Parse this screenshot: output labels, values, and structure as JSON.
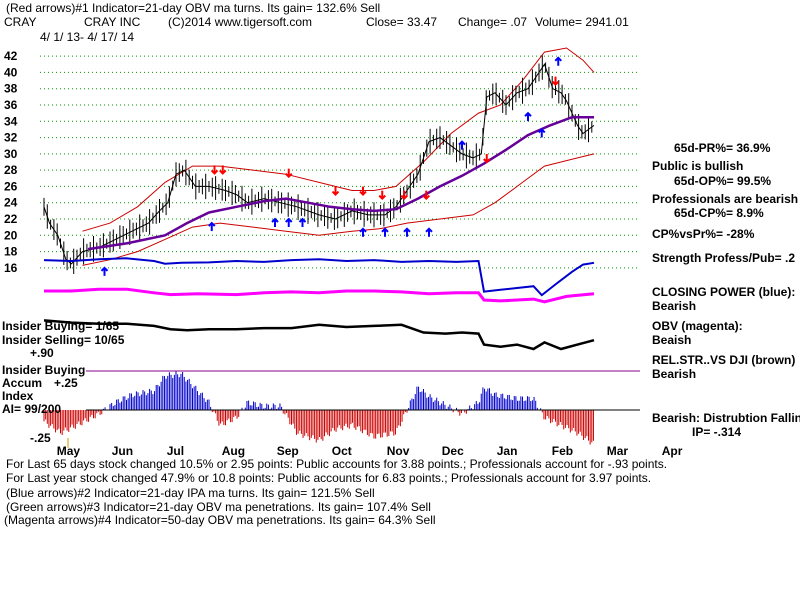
{
  "header": {
    "line1": "(Red arrows)#1 Indicator=21-day OBV ma turns. Its gain= 132.6% Sell",
    "symbol": "CRAY",
    "company": "CRAY INC",
    "copyright": "(C)2014 www.tigersoft.com",
    "close": "Close= 33.47",
    "change": "Change= .07",
    "volume": "Volume= 2941.01",
    "date_range": "4/ 1/ 13- 4/ 17/ 14"
  },
  "right_labels": {
    "pr": "65d-PR%= 36.9%",
    "public": "Public is bullish",
    "op": "65d-OP%= 99.5%",
    "pros": "Professionals are bearish",
    "cp": "65d-CP%= 8.9%",
    "cpvspr": "CP%vsPr%= -28%",
    "strength": "Strength Profess/Pub= .2",
    "closing_power": "CLOSING POWER (blue):",
    "closing_power_state": "Bearish",
    "obv": "OBV (magenta):",
    "obv_state": "Beaish",
    "relstr": "REL.STR..VS DJI (brown)",
    "relstr_state": "Bearish",
    "accum": "Bearish: Distrubtion Falling",
    "ip": "IP= -.314"
  },
  "left_labels": {
    "insider_buying": "Insider Buying= 1/65",
    "insider_selling": "Insider Selling= 10/65",
    "plus90": "+.90",
    "insider_buying2": "Insider Buying",
    "accum": "Accum",
    "plus25": "+.25",
    "index": "Index",
    "ai": "AI= 99/200",
    "minus25": "-.25"
  },
  "footer": {
    "line1": "For Last 65 days stock changed  10.5% or  2.95 points:  Public accounts for  3.88 points.;  Professionals account for  -.93 points.",
    "line2": "For Last year stock changed  47.9% or  10.8 points:  Public accounts for  6.83 points.;  Professionals account for  3.97 points.",
    "line3": "(Blue arrows)#2 Indicator=21-day IPA ma turns. Its gain= 121.5% Sell",
    "line4": "(Green arrows)#3 Indicator=21-day OBV ma penetrations. Its gain= 107.4% Sell",
    "line5": "(Magenta arrows)#4 Indicator=50-day OBV ma penetrations. Its gain= 64.3% Sell"
  },
  "colors": {
    "price": "#000000",
    "bands": "#cc0000",
    "ma": "#660099",
    "closing_power": "#0000cc",
    "obv": "#ff00ff",
    "relstr": "#000000",
    "accum_pos": "#0000cc",
    "accum_neg": "#cc0000",
    "sell_arrow": "#ff0000",
    "buy_arrow": "#0000ff"
  },
  "chart_data": {
    "type": "line",
    "ylim": [
      15,
      43
    ],
    "y_ticks": [
      42,
      40,
      38,
      36,
      34,
      32,
      30,
      28,
      26,
      24,
      22,
      20,
      18,
      16
    ],
    "months": [
      "May",
      "Jun",
      "Jul",
      "Aug",
      "Sep",
      "Oct",
      "Nov",
      "Dec",
      "Jan",
      "Feb",
      "Mar",
      "Apr"
    ],
    "price_path": [
      [
        0,
        23.5
      ],
      [
        0.1,
        21.5
      ],
      [
        0.25,
        20.0
      ],
      [
        0.4,
        17.0
      ],
      [
        0.5,
        16.5
      ],
      [
        0.7,
        18.0
      ],
      [
        1.0,
        18.5
      ],
      [
        1.3,
        19.5
      ],
      [
        1.6,
        20.5
      ],
      [
        1.9,
        21.5
      ],
      [
        2.1,
        23.0
      ],
      [
        2.25,
        24.0
      ],
      [
        2.4,
        27.5
      ],
      [
        2.55,
        28.0
      ],
      [
        2.75,
        26.0
      ],
      [
        3.0,
        26.0
      ],
      [
        3.3,
        25.5
      ],
      [
        3.5,
        25.0
      ],
      [
        3.7,
        24.0
      ],
      [
        4.0,
        24.5
      ],
      [
        4.3,
        24.0
      ],
      [
        4.6,
        23.5
      ],
      [
        5.0,
        22.5
      ],
      [
        5.3,
        22.0
      ],
      [
        5.6,
        23.0
      ],
      [
        5.9,
        22.5
      ],
      [
        6.2,
        22.5
      ],
      [
        6.4,
        23.5
      ],
      [
        6.6,
        25.5
      ],
      [
        6.8,
        27.5
      ],
      [
        7.0,
        31.5
      ],
      [
        7.2,
        32.0
      ],
      [
        7.4,
        31.0
      ],
      [
        7.6,
        30.0
      ],
      [
        7.8,
        29.5
      ],
      [
        7.95,
        30.0
      ],
      [
        8.05,
        37.0
      ],
      [
        8.2,
        37.5
      ],
      [
        8.4,
        36.0
      ],
      [
        8.6,
        37.5
      ],
      [
        8.8,
        38.0
      ],
      [
        8.95,
        39.5
      ],
      [
        9.1,
        41.0
      ],
      [
        9.25,
        38.0
      ],
      [
        9.4,
        37.5
      ],
      [
        9.5,
        36.5
      ],
      [
        9.6,
        35.0
      ],
      [
        9.7,
        33.5
      ],
      [
        9.8,
        32.5
      ],
      [
        9.9,
        33.0
      ],
      [
        10.0,
        33.5
      ]
    ],
    "ma_path": [
      [
        0.8,
        18.3
      ],
      [
        1.5,
        19.0
      ],
      [
        2.2,
        20.0
      ],
      [
        2.6,
        21.5
      ],
      [
        3.0,
        22.8
      ],
      [
        3.5,
        23.5
      ],
      [
        4.0,
        24.2
      ],
      [
        4.4,
        24.5
      ],
      [
        4.8,
        24.0
      ],
      [
        5.2,
        23.5
      ],
      [
        5.6,
        23.2
      ],
      [
        6.0,
        23.0
      ],
      [
        6.4,
        23.2
      ],
      [
        6.8,
        24.5
      ],
      [
        7.2,
        26.0
      ],
      [
        7.6,
        27.3
      ],
      [
        8.0,
        28.8
      ],
      [
        8.4,
        30.5
      ],
      [
        8.8,
        32.3
      ],
      [
        9.2,
        33.5
      ],
      [
        9.6,
        34.5
      ],
      [
        10.0,
        34.5
      ]
    ],
    "upper_band_path": [
      [
        0.7,
        20.5
      ],
      [
        1.2,
        21.5
      ],
      [
        1.7,
        23.5
      ],
      [
        2.2,
        26.5
      ],
      [
        2.7,
        28.5
      ],
      [
        3.2,
        28.5
      ],
      [
        3.8,
        28.0
      ],
      [
        4.4,
        27.5
      ],
      [
        5.0,
        26.5
      ],
      [
        5.6,
        25.5
      ],
      [
        6.0,
        25.5
      ],
      [
        6.4,
        26.0
      ],
      [
        6.9,
        29.0
      ],
      [
        7.4,
        32.5
      ],
      [
        7.9,
        35.0
      ],
      [
        8.3,
        36.0
      ],
      [
        8.7,
        39.0
      ],
      [
        9.1,
        42.5
      ],
      [
        9.5,
        43.0
      ],
      [
        9.8,
        41.5
      ],
      [
        10.0,
        40.0
      ]
    ],
    "lower_band_path": [
      [
        0.7,
        16.3
      ],
      [
        1.2,
        17.0
      ],
      [
        1.7,
        18.0
      ],
      [
        2.2,
        19.5
      ],
      [
        2.7,
        21.0
      ],
      [
        3.2,
        21.5
      ],
      [
        3.8,
        21.0
      ],
      [
        4.4,
        20.5
      ],
      [
        5.0,
        20.0
      ],
      [
        5.6,
        20.5
      ],
      [
        6.1,
        20.8
      ],
      [
        6.6,
        21.5
      ],
      [
        7.2,
        22.0
      ],
      [
        7.8,
        22.5
      ],
      [
        8.2,
        24.0
      ],
      [
        8.7,
        26.5
      ],
      [
        9.1,
        28.5
      ],
      [
        9.4,
        29.0
      ],
      [
        9.7,
        29.5
      ],
      [
        10.0,
        30.0
      ]
    ],
    "closing_power_path": [
      [
        0,
        0.55
      ],
      [
        0.5,
        0.5
      ],
      [
        1.0,
        0.6
      ],
      [
        1.5,
        0.65
      ],
      [
        2.0,
        0.5
      ],
      [
        2.2,
        0.35
      ],
      [
        2.5,
        0.4
      ],
      [
        3.0,
        0.42
      ],
      [
        3.5,
        0.5
      ],
      [
        4.0,
        0.45
      ],
      [
        4.5,
        0.55
      ],
      [
        5.0,
        0.6
      ],
      [
        5.5,
        0.5
      ],
      [
        6.0,
        0.55
      ],
      [
        6.5,
        0.45
      ],
      [
        7.0,
        0.5
      ],
      [
        7.5,
        0.45
      ],
      [
        7.9,
        0.5
      ],
      [
        8.0,
        -1.2
      ],
      [
        8.3,
        -1.1
      ],
      [
        8.6,
        -1.0
      ],
      [
        8.9,
        -0.9
      ],
      [
        9.05,
        -1.4
      ],
      [
        9.3,
        -0.8
      ],
      [
        9.6,
        -0.1
      ],
      [
        9.8,
        0.3
      ],
      [
        10.0,
        0.4
      ]
    ],
    "obv_path": [
      [
        0,
        0.5
      ],
      [
        0.5,
        0.5
      ],
      [
        1.0,
        0.6
      ],
      [
        1.5,
        0.6
      ],
      [
        2.0,
        0.4
      ],
      [
        2.3,
        0.3
      ],
      [
        2.8,
        0.35
      ],
      [
        3.5,
        0.3
      ],
      [
        4.0,
        0.4
      ],
      [
        4.5,
        0.45
      ],
      [
        5.0,
        0.4
      ],
      [
        5.5,
        0.5
      ],
      [
        6.0,
        0.5
      ],
      [
        6.5,
        0.45
      ],
      [
        7.0,
        0.35
      ],
      [
        7.5,
        0.4
      ],
      [
        7.9,
        0.4
      ],
      [
        8.0,
        0.0
      ],
      [
        8.3,
        -0.05
      ],
      [
        8.6,
        0.0
      ],
      [
        8.9,
        0.05
      ],
      [
        9.1,
        -0.1
      ],
      [
        9.5,
        0.2
      ],
      [
        10.0,
        0.35
      ]
    ],
    "relstr_path": [
      [
        0,
        0.8
      ],
      [
        0.5,
        0.7
      ],
      [
        1.0,
        0.65
      ],
      [
        1.5,
        0.65
      ],
      [
        2.0,
        0.55
      ],
      [
        2.3,
        0.4
      ],
      [
        2.6,
        0.35
      ],
      [
        3.0,
        0.4
      ],
      [
        3.5,
        0.4
      ],
      [
        4.0,
        0.45
      ],
      [
        4.5,
        0.45
      ],
      [
        5.0,
        0.6
      ],
      [
        5.5,
        0.5
      ],
      [
        6.0,
        0.55
      ],
      [
        6.5,
        0.6
      ],
      [
        6.9,
        0.25
      ],
      [
        7.3,
        0.2
      ],
      [
        7.6,
        0.25
      ],
      [
        7.9,
        0.2
      ],
      [
        8.0,
        -0.3
      ],
      [
        8.3,
        -0.4
      ],
      [
        8.6,
        -0.3
      ],
      [
        8.9,
        -0.5
      ],
      [
        9.1,
        -0.2
      ],
      [
        9.4,
        -0.5
      ],
      [
        9.7,
        -0.3
      ],
      [
        10.0,
        -0.1
      ]
    ],
    "accum_path": [
      [
        0,
        -0.3
      ],
      [
        0.3,
        -0.6
      ],
      [
        0.6,
        -0.4
      ],
      [
        1.0,
        -0.1
      ],
      [
        1.3,
        0.2
      ],
      [
        1.6,
        0.4
      ],
      [
        2.0,
        0.5
      ],
      [
        2.2,
        0.9
      ],
      [
        2.5,
        0.95
      ],
      [
        2.8,
        0.5
      ],
      [
        3.0,
        0.2
      ],
      [
        3.2,
        -0.4
      ],
      [
        3.5,
        -0.2
      ],
      [
        3.7,
        0.2
      ],
      [
        4.0,
        0.1
      ],
      [
        4.3,
        0.1
      ],
      [
        4.6,
        -0.6
      ],
      [
        5.0,
        -0.8
      ],
      [
        5.3,
        -0.5
      ],
      [
        5.6,
        -0.4
      ],
      [
        6.0,
        -0.7
      ],
      [
        6.4,
        -0.6
      ],
      [
        6.8,
        0.6
      ],
      [
        7.0,
        0.35
      ],
      [
        7.2,
        0.2
      ],
      [
        7.6,
        -0.1
      ],
      [
        7.9,
        0.2
      ],
      [
        8.0,
        0.6
      ],
      [
        8.2,
        0.4
      ],
      [
        8.6,
        0.3
      ],
      [
        8.9,
        0.3
      ],
      [
        9.1,
        -0.2
      ],
      [
        9.4,
        -0.4
      ],
      [
        9.7,
        -0.6
      ],
      [
        10.0,
        -0.9
      ]
    ],
    "sell_arrows": [
      [
        3.1,
        27.6
      ],
      [
        3.25,
        27.6
      ],
      [
        4.45,
        27.2
      ],
      [
        5.3,
        25.0
      ],
      [
        5.8,
        25.0
      ],
      [
        6.15,
        24.5
      ],
      [
        6.55,
        24.5
      ],
      [
        6.95,
        24.5
      ],
      [
        8.05,
        29.0
      ],
      [
        9.3,
        38.5
      ]
    ],
    "buy_arrows": [
      [
        1.1,
        16.0
      ],
      [
        3.05,
        21.5
      ],
      [
        4.2,
        22.0
      ],
      [
        4.45,
        22.0
      ],
      [
        4.7,
        22.0
      ],
      [
        5.8,
        20.8
      ],
      [
        6.2,
        20.8
      ],
      [
        6.6,
        20.8
      ],
      [
        7.0,
        20.8
      ],
      [
        7.6,
        31.5
      ],
      [
        8.8,
        35.0
      ],
      [
        9.05,
        33.0
      ],
      [
        9.35,
        41.8
      ]
    ]
  }
}
